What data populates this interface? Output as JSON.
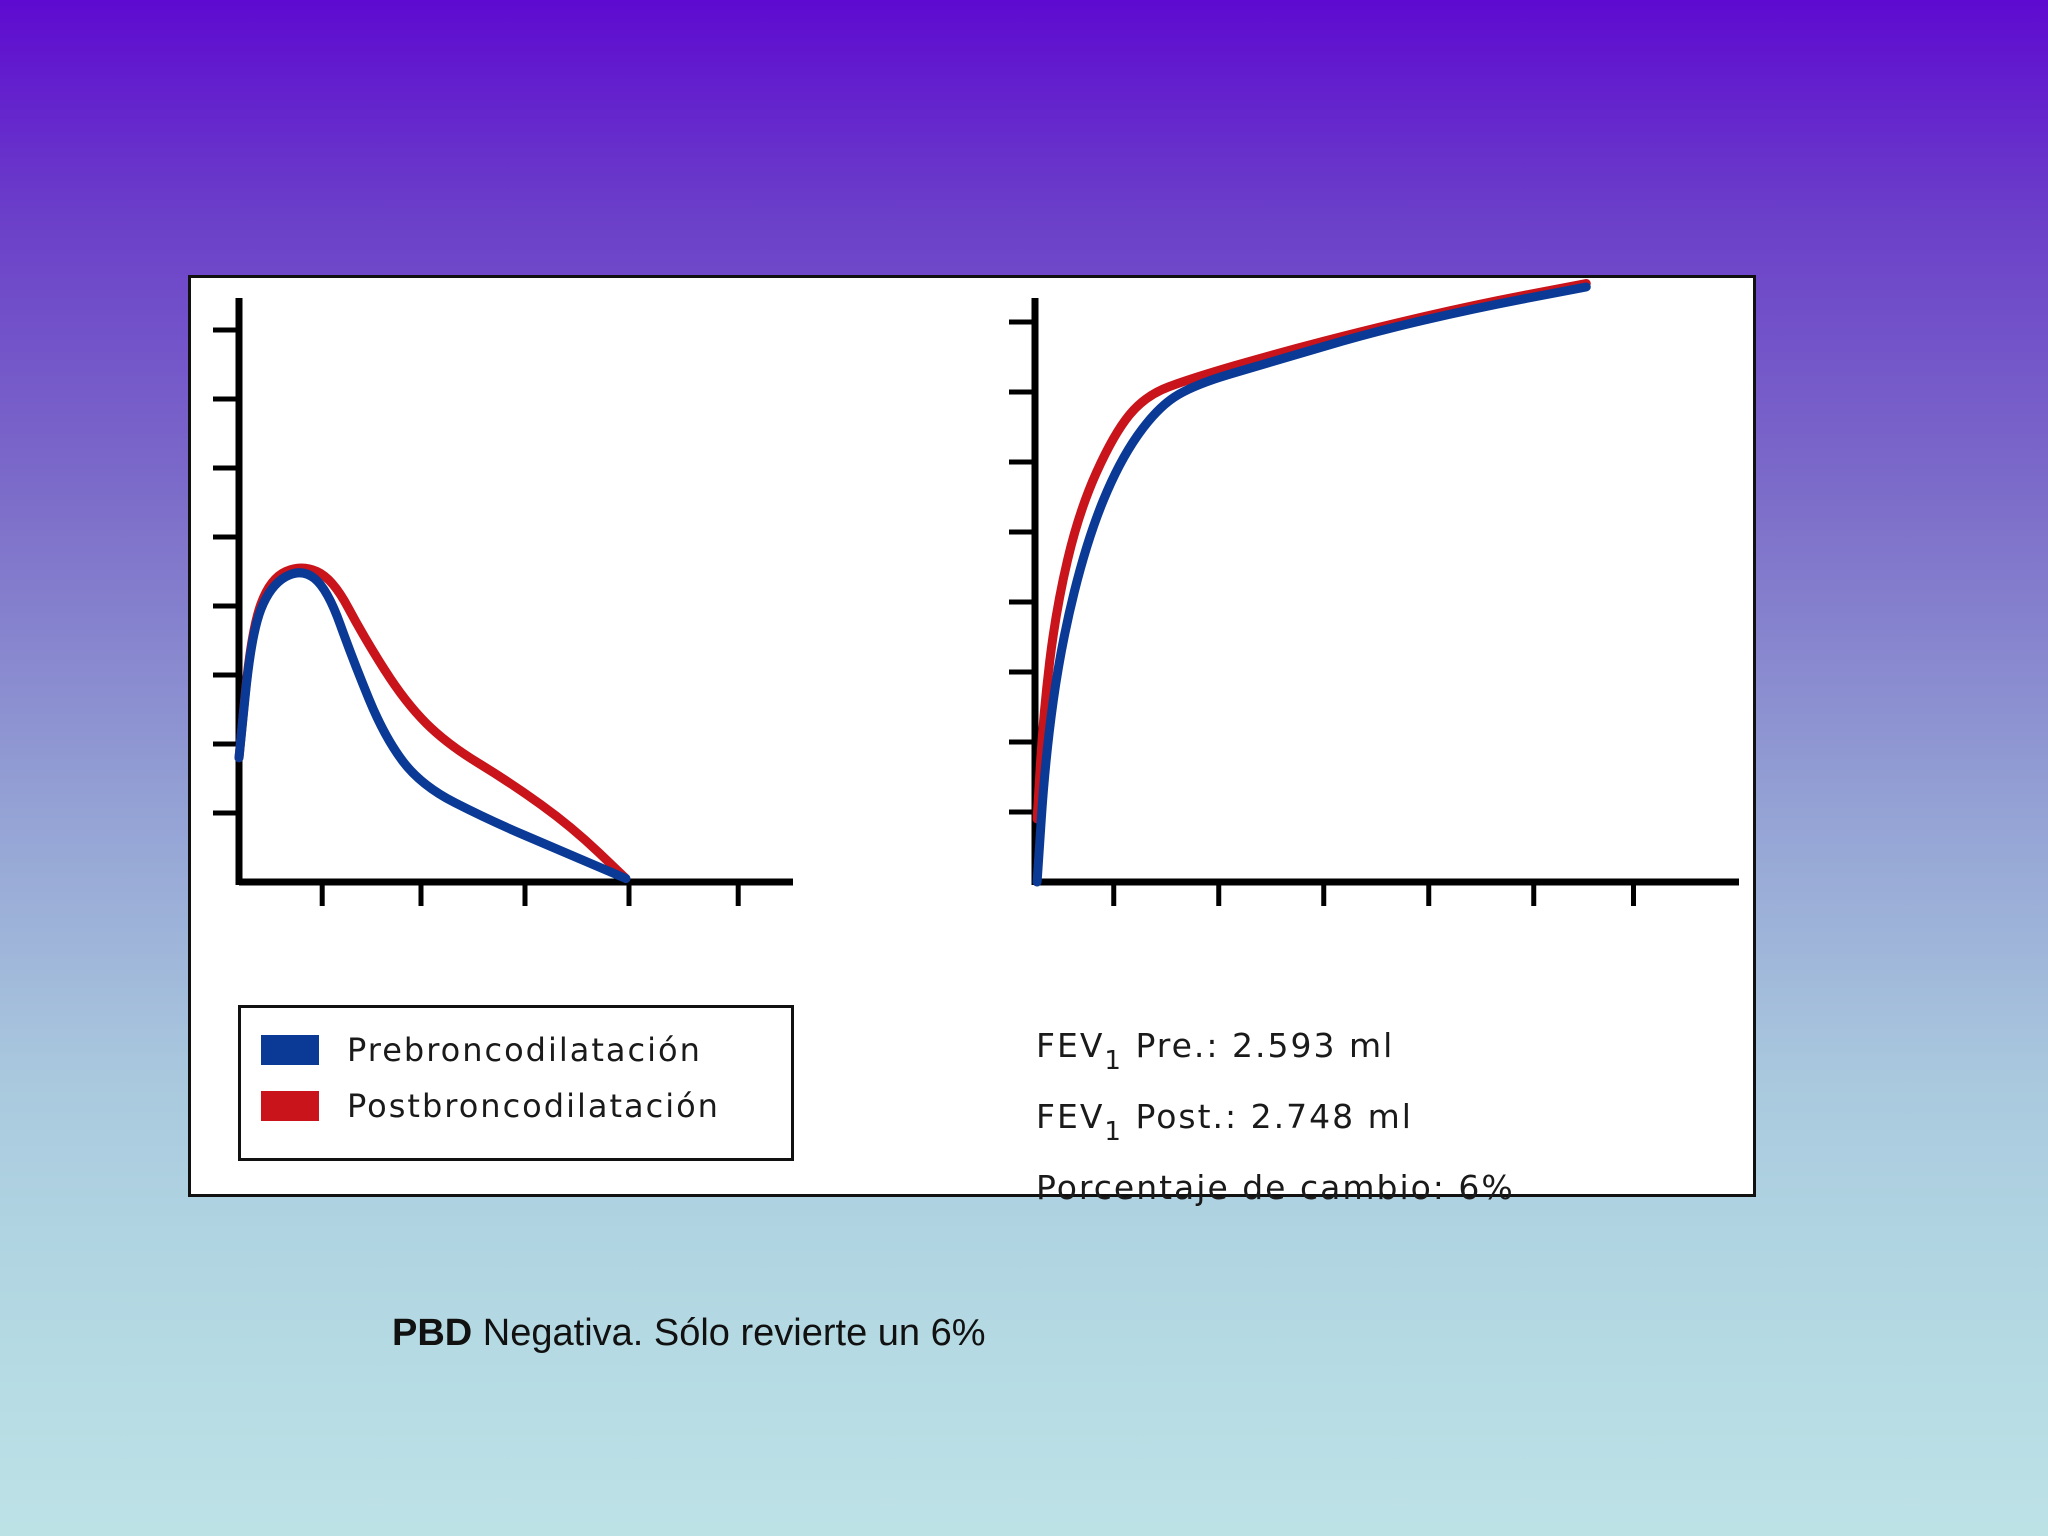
{
  "chart_data": [
    {
      "type": "line",
      "title": "",
      "xlabel": "",
      "ylabel": "",
      "xlim": [
        0,
        5.3
      ],
      "ylim": [
        0,
        8.5
      ],
      "x_ticks": [
        0.8,
        1.75,
        2.75,
        3.75,
        4.8
      ],
      "y_ticks": [
        1,
        2,
        3,
        4,
        5,
        6,
        7,
        8
      ],
      "grid": false,
      "series": [
        {
          "name": "Prebroncodilatación",
          "color": "#0a3a96",
          "points": [
            [
              0,
              1.8
            ],
            [
              0.12,
              3.6
            ],
            [
              0.3,
              4.3
            ],
            [
              0.6,
              4.55
            ],
            [
              0.85,
              4.25
            ],
            [
              1.1,
              3.2
            ],
            [
              1.4,
              2.1
            ],
            [
              1.75,
              1.4
            ],
            [
              2.4,
              0.9
            ],
            [
              3.1,
              0.45
            ],
            [
              3.72,
              0.05
            ]
          ]
        },
        {
          "name": "Postbroncodilatación",
          "color": "#c8141a",
          "points": [
            [
              0,
              1.8
            ],
            [
              0.12,
              3.65
            ],
            [
              0.3,
              4.4
            ],
            [
              0.6,
              4.6
            ],
            [
              0.9,
              4.4
            ],
            [
              1.2,
              3.55
            ],
            [
              1.6,
              2.6
            ],
            [
              2.0,
              2.0
            ],
            [
              2.6,
              1.45
            ],
            [
              3.2,
              0.8
            ],
            [
              3.72,
              0.05
            ]
          ]
        }
      ]
    },
    {
      "type": "line",
      "title": "",
      "xlabel": "",
      "ylabel": "",
      "xlim": [
        0,
        6.5
      ],
      "ylim": [
        0,
        8.8
      ],
      "x_ticks": [
        0.75,
        1.75,
        2.75,
        3.75,
        4.75,
        5.7
      ],
      "y_ticks": [
        1,
        2,
        3,
        4,
        5,
        6,
        7,
        8
      ],
      "grid": false,
      "series": [
        {
          "name": "Prebroncodilatación",
          "color": "#0a3a96",
          "points": [
            [
              0.02,
              0.0
            ],
            [
              0.1,
              1.8
            ],
            [
              0.25,
              3.4
            ],
            [
              0.5,
              4.9
            ],
            [
              0.8,
              6.0
            ],
            [
              1.15,
              6.75
            ],
            [
              1.5,
              7.1
            ],
            [
              2.3,
              7.45
            ],
            [
              3.2,
              7.85
            ],
            [
              4.2,
              8.2
            ],
            [
              5.25,
              8.5
            ]
          ]
        },
        {
          "name": "Postbroncodilatación",
          "color": "#c8141a",
          "points": [
            [
              0.02,
              0.9
            ],
            [
              0.08,
              2.4
            ],
            [
              0.2,
              3.9
            ],
            [
              0.42,
              5.3
            ],
            [
              0.75,
              6.4
            ],
            [
              1.05,
              6.95
            ],
            [
              1.5,
              7.2
            ],
            [
              2.3,
              7.55
            ],
            [
              3.2,
              7.9
            ],
            [
              4.2,
              8.25
            ],
            [
              5.25,
              8.55
            ]
          ]
        }
      ]
    }
  ],
  "legend": {
    "items": [
      {
        "label": "Prebroncodilatación",
        "color": "#0a3a96"
      },
      {
        "label": "Postbroncodilatación",
        "color": "#c8141a"
      }
    ]
  },
  "stats": {
    "fev_label": "FEV",
    "fev_sub": "1",
    "pre_text": "Pre.: 2.593 ml",
    "post_text": "Post.: 2.748 ml",
    "change_text": "Porcentaje de cambio: 6%"
  },
  "caption": {
    "bold": "PBD",
    "text": " Negativa. Sólo revierte un 6%"
  }
}
